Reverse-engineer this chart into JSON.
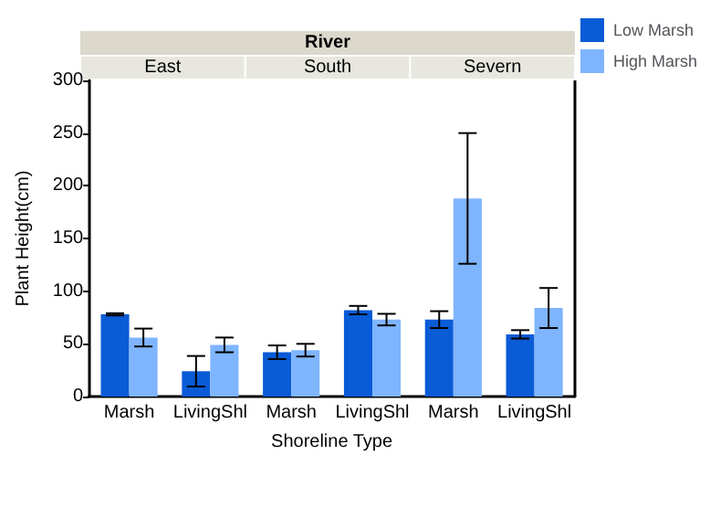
{
  "chart_data": {
    "type": "bar",
    "xlabel": "Shoreline Type",
    "ylabel": "Plant Height(cm)",
    "categories": [
      "Marsh",
      "LivingShl",
      "Marsh",
      "LivingShl",
      "Marsh",
      "LivingShl"
    ],
    "annotations": [
      "River",
      "East",
      "South",
      "Severn"
    ],
    "series": [
      {
        "name": "Low Marsh",
        "color": "#0a5bd6",
        "values": [
          78,
          24,
          42,
          82,
          73,
          59
        ],
        "errors": [
          1,
          14.5,
          6.5,
          4,
          8,
          4
        ]
      },
      {
        "name": "High Marsh",
        "color": "#7fb5ff",
        "values": [
          56,
          49,
          44,
          73,
          188,
          84
        ],
        "errors": [
          8.5,
          7,
          6,
          5.5,
          62,
          19
        ]
      }
    ],
    "ylim": [
      0,
      300
    ],
    "yticks": [
      0,
      50,
      100,
      150,
      200,
      250,
      300
    ],
    "grid": false,
    "legend": "top right"
  }
}
